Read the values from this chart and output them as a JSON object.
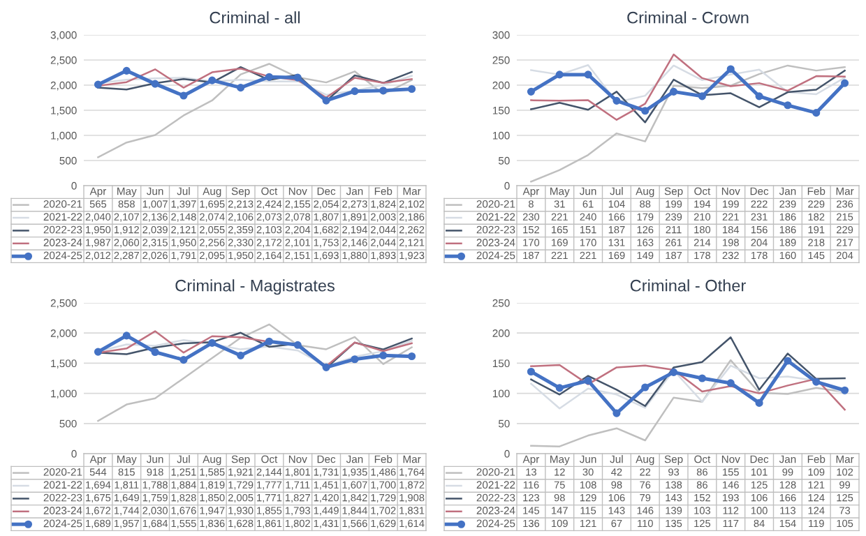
{
  "chart_data": [
    {
      "type": "line",
      "title": "Criminal - all",
      "categories": [
        "Apr",
        "May",
        "Jun",
        "Jul",
        "Aug",
        "Sep",
        "Oct",
        "Nov",
        "Dec",
        "Jan",
        "Feb",
        "Mar"
      ],
      "ylim": [
        0,
        3000
      ],
      "yticks": [
        {
          "value": 0,
          "label": "0"
        },
        {
          "value": 500,
          "label": "500"
        },
        {
          "value": 1000,
          "label": "1,000"
        },
        {
          "value": 1500,
          "label": "1,500"
        },
        {
          "value": 2000,
          "label": "2,000"
        },
        {
          "value": 2500,
          "label": "2,500"
        },
        {
          "value": 3000,
          "label": "3,000"
        }
      ],
      "grid": "y",
      "legend": "bottom",
      "series": [
        {
          "name": "2020-21",
          "color": "#bfbfbf",
          "values": [
            565,
            858,
            1007,
            1397,
            1695,
            2213,
            2424,
            2155,
            2054,
            2273,
            1824,
            2102
          ],
          "value_labels": [
            "565",
            "858",
            "1,007",
            "1,397",
            "1,695",
            "2,213",
            "2,424",
            "2,155",
            "2,054",
            "2,273",
            "1,824",
            "2,102"
          ]
        },
        {
          "name": "2021-22",
          "color": "#d6dce4",
          "values": [
            2040,
            2107,
            2136,
            2148,
            2074,
            2106,
            2073,
            2078,
            1807,
            1891,
            2003,
            2186
          ],
          "value_labels": [
            "2,040",
            "2,107",
            "2,136",
            "2,148",
            "2,074",
            "2,106",
            "2,073",
            "2,078",
            "1,807",
            "1,891",
            "2,003",
            "2,186"
          ]
        },
        {
          "name": "2022-23",
          "color": "#44546a",
          "values": [
            1950,
            1912,
            2039,
            2121,
            2055,
            2359,
            2103,
            2204,
            1682,
            2194,
            2044,
            2262
          ],
          "value_labels": [
            "1,950",
            "1,912",
            "2,039",
            "2,121",
            "2,055",
            "2,359",
            "2,103",
            "2,204",
            "1,682",
            "2,194",
            "2,044",
            "2,262"
          ]
        },
        {
          "name": "2023-24",
          "color": "#c0707f",
          "values": [
            1987,
            2060,
            2315,
            1950,
            2256,
            2330,
            2172,
            2101,
            1753,
            2146,
            2044,
            2121
          ],
          "value_labels": [
            "1,987",
            "2,060",
            "2,315",
            "1,950",
            "2,256",
            "2,330",
            "2,172",
            "2,101",
            "1,753",
            "2,146",
            "2,044",
            "2,121"
          ]
        },
        {
          "name": "2024-25",
          "color": "#4472c4",
          "marker": "circle",
          "values": [
            2012,
            2287,
            2026,
            1791,
            2095,
            1950,
            2164,
            2151,
            1693,
            1880,
            1893,
            1923
          ],
          "value_labels": [
            "2,012",
            "2,287",
            "2,026",
            "1,791",
            "2,095",
            "1,950",
            "2,164",
            "2,151",
            "1,693",
            "1,880",
            "1,893",
            "1,923"
          ]
        }
      ]
    },
    {
      "type": "line",
      "title": "Criminal - Crown",
      "categories": [
        "Apr",
        "May",
        "Jun",
        "Jul",
        "Aug",
        "Sep",
        "Oct",
        "Nov",
        "Dec",
        "Jan",
        "Feb",
        "Mar"
      ],
      "ylim": [
        0,
        300
      ],
      "yticks": [
        0,
        50,
        100,
        150,
        200,
        250,
        300
      ],
      "grid": "y",
      "legend": "bottom",
      "data_labels": true,
      "series": [
        {
          "name": "2020-21",
          "color": "#bfbfbf",
          "values": [
            8,
            31,
            61,
            104,
            88,
            199,
            194,
            199,
            222,
            239,
            229,
            236
          ]
        },
        {
          "name": "2021-22",
          "color": "#d6dce4",
          "values": [
            230,
            221,
            240,
            166,
            179,
            239,
            210,
            221,
            231,
            186,
            182,
            215
          ]
        },
        {
          "name": "2022-23",
          "color": "#44546a",
          "values": [
            152,
            165,
            151,
            187,
            126,
            211,
            180,
            184,
            156,
            186,
            191,
            229
          ]
        },
        {
          "name": "2023-24",
          "color": "#c0707f",
          "values": [
            170,
            169,
            170,
            131,
            163,
            261,
            214,
            198,
            204,
            189,
            218,
            217
          ]
        },
        {
          "name": "2024-25",
          "color": "#4472c4",
          "marker": "circle",
          "values": [
            187,
            221,
            221,
            169,
            149,
            187,
            178,
            232,
            178,
            160,
            145,
            204
          ]
        }
      ]
    },
    {
      "type": "line",
      "title": "Criminal - Magistrates",
      "categories": [
        "Apr",
        "May",
        "Jun",
        "Jul",
        "Aug",
        "Sep",
        "Oct",
        "Nov",
        "Dec",
        "Jan",
        "Feb",
        "Mar"
      ],
      "ylim": [
        0,
        2500
      ],
      "yticks": [
        {
          "value": 0,
          "label": "0"
        },
        {
          "value": 500,
          "label": "500"
        },
        {
          "value": 1000,
          "label": "1,000"
        },
        {
          "value": 1500,
          "label": "1,500"
        },
        {
          "value": 2000,
          "label": "2,000"
        },
        {
          "value": 2500,
          "label": "2,500"
        }
      ],
      "grid": "y",
      "legend": "bottom",
      "series": [
        {
          "name": "2020-21",
          "color": "#bfbfbf",
          "values": [
            544,
            815,
            918,
            1251,
            1585,
            1921,
            2144,
            1801,
            1731,
            1935,
            1486,
            1764
          ],
          "value_labels": [
            "544",
            "815",
            "918",
            "1,251",
            "1,585",
            "1,921",
            "2,144",
            "1,801",
            "1,731",
            "1,935",
            "1,486",
            "1,764"
          ]
        },
        {
          "name": "2021-22",
          "color": "#d6dce4",
          "values": [
            1694,
            1811,
            1788,
            1884,
            1819,
            1729,
            1777,
            1711,
            1451,
            1607,
            1700,
            1872
          ],
          "value_labels": [
            "1,694",
            "1,811",
            "1,788",
            "1,884",
            "1,819",
            "1,729",
            "1,777",
            "1,711",
            "1,451",
            "1,607",
            "1,700",
            "1,872"
          ]
        },
        {
          "name": "2022-23",
          "color": "#44546a",
          "values": [
            1675,
            1649,
            1759,
            1828,
            1850,
            2005,
            1771,
            1827,
            1420,
            1842,
            1729,
            1908
          ],
          "value_labels": [
            "1,675",
            "1,649",
            "1,759",
            "1,828",
            "1,850",
            "2,005",
            "1,771",
            "1,827",
            "1,420",
            "1,842",
            "1,729",
            "1,908"
          ]
        },
        {
          "name": "2023-24",
          "color": "#c0707f",
          "values": [
            1672,
            1744,
            2030,
            1676,
            1947,
            1930,
            1855,
            1793,
            1449,
            1844,
            1702,
            1831
          ],
          "value_labels": [
            "1,672",
            "1,744",
            "2,030",
            "1,676",
            "1,947",
            "1,930",
            "1,855",
            "1,793",
            "1,449",
            "1,844",
            "1,702",
            "1,831"
          ]
        },
        {
          "name": "2024-25",
          "color": "#4472c4",
          "marker": "circle",
          "values": [
            1689,
            1957,
            1684,
            1555,
            1836,
            1628,
            1861,
            1802,
            1431,
            1566,
            1629,
            1614
          ],
          "value_labels": [
            "1,689",
            "1,957",
            "1,684",
            "1,555",
            "1,836",
            "1,628",
            "1,861",
            "1,802",
            "1,431",
            "1,566",
            "1,629",
            "1,614"
          ]
        }
      ]
    },
    {
      "type": "line",
      "title": "Criminal - Other",
      "categories": [
        "Apr",
        "May",
        "Jun",
        "Jul",
        "Aug",
        "Sep",
        "Oct",
        "Nov",
        "Dec",
        "Jan",
        "Feb",
        "Mar"
      ],
      "ylim": [
        0,
        250
      ],
      "yticks": [
        0,
        50,
        100,
        150,
        200,
        250
      ],
      "grid": "y",
      "legend": "bottom",
      "data_labels": true,
      "series": [
        {
          "name": "2020-21",
          "color": "#bfbfbf",
          "values": [
            13,
            12,
            30,
            42,
            22,
            93,
            86,
            155,
            101,
            99,
            109,
            102
          ]
        },
        {
          "name": "2021-22",
          "color": "#d6dce4",
          "values": [
            116,
            75,
            108,
            98,
            76,
            138,
            86,
            146,
            125,
            128,
            121,
            99
          ]
        },
        {
          "name": "2022-23",
          "color": "#44546a",
          "values": [
            123,
            98,
            129,
            106,
            79,
            143,
            152,
            193,
            106,
            166,
            124,
            125
          ]
        },
        {
          "name": "2023-24",
          "color": "#c0707f",
          "values": [
            145,
            147,
            115,
            143,
            146,
            139,
            103,
            112,
            100,
            113,
            124,
            73
          ]
        },
        {
          "name": "2024-25",
          "color": "#4472c4",
          "marker": "circle",
          "values": [
            136,
            109,
            121,
            67,
            110,
            135,
            125,
            117,
            84,
            154,
            119,
            105
          ]
        }
      ]
    }
  ]
}
